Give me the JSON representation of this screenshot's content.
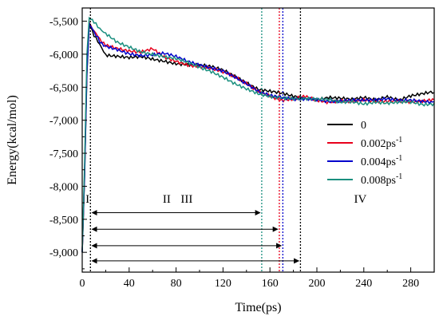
{
  "chart_data": {
    "type": "line",
    "xlabel": "Time(ps)",
    "ylabel": "Energy(kcal/mol)",
    "xlim": [
      0,
      300
    ],
    "ylim": [
      -9300,
      -5300
    ],
    "xticks": [
      0,
      40,
      80,
      120,
      160,
      200,
      240,
      280
    ],
    "xtick_labels": [
      "0",
      "40",
      "80",
      "120",
      "160",
      "200",
      "240",
      "280"
    ],
    "yticks": [
      -5500,
      -6000,
      -6500,
      -7000,
      -7500,
      -8000,
      -8500,
      -9000
    ],
    "ytick_labels": [
      "-5,500",
      "-6,000",
      "-6,500",
      "-7,000",
      "-7,500",
      "-8,000",
      "-8,500",
      "-9,000"
    ],
    "legend_position": "right",
    "series": [
      {
        "name": "0",
        "legend_label": "0",
        "legend_sup": "",
        "color": "#000000",
        "x": [
          0,
          2,
          4,
          6,
          10,
          15,
          20,
          30,
          40,
          50,
          60,
          70,
          80,
          90,
          100,
          110,
          120,
          130,
          140,
          150,
          160,
          170,
          180,
          190,
          200,
          210,
          220,
          230,
          240,
          250,
          260,
          270,
          280,
          290,
          300
        ],
        "y": [
          -9000,
          -7900,
          -6300,
          -5550,
          -5700,
          -5870,
          -6000,
          -6030,
          -6060,
          -6050,
          -6080,
          -6100,
          -6130,
          -6150,
          -6170,
          -6200,
          -6250,
          -6330,
          -6420,
          -6520,
          -6560,
          -6600,
          -6650,
          -6670,
          -6680,
          -6640,
          -6660,
          -6690,
          -6670,
          -6700,
          -6640,
          -6680,
          -6620,
          -6600,
          -6580
        ]
      },
      {
        "name": "0.002ps-1",
        "legend_label": "0.002ps",
        "legend_sup": "-1",
        "color": "#e8001c",
        "x": [
          0,
          2,
          4,
          6,
          10,
          15,
          20,
          30,
          40,
          50,
          60,
          70,
          80,
          90,
          100,
          110,
          120,
          130,
          140,
          150,
          160,
          170,
          180,
          190,
          200,
          210,
          220,
          230,
          240,
          250,
          260,
          270,
          280,
          290,
          300
        ],
        "y": [
          -9000,
          -7800,
          -6200,
          -5520,
          -5650,
          -5780,
          -5850,
          -5900,
          -5950,
          -5980,
          -5930,
          -6050,
          -6100,
          -6150,
          -6180,
          -6220,
          -6280,
          -6350,
          -6440,
          -6550,
          -6620,
          -6700,
          -6690,
          -6650,
          -6700,
          -6720,
          -6690,
          -6710,
          -6700,
          -6730,
          -6720,
          -6700,
          -6710,
          -6700,
          -6690
        ]
      },
      {
        "name": "0.004ps-1",
        "legend_label": "0.004ps",
        "legend_sup": "-1",
        "color": "#0000cc",
        "x": [
          0,
          2,
          4,
          6,
          10,
          15,
          20,
          30,
          40,
          50,
          60,
          70,
          80,
          90,
          100,
          110,
          120,
          130,
          140,
          150,
          160,
          170,
          180,
          190,
          200,
          210,
          220,
          230,
          240,
          250,
          260,
          270,
          280,
          290,
          300
        ],
        "y": [
          -9000,
          -7850,
          -6250,
          -5530,
          -5680,
          -5800,
          -5880,
          -5920,
          -5980,
          -6020,
          -6020,
          -6000,
          -6040,
          -6100,
          -6150,
          -6200,
          -6260,
          -6360,
          -6460,
          -6560,
          -6610,
          -6640,
          -6680,
          -6690,
          -6700,
          -6720,
          -6700,
          -6680,
          -6690,
          -6700,
          -6690,
          -6710,
          -6690,
          -6700,
          -6720
        ]
      },
      {
        "name": "0.008ps-1",
        "legend_label": "0.008ps",
        "legend_sup": "-1",
        "color": "#1a8f7f",
        "x": [
          0,
          2,
          4,
          6,
          10,
          15,
          20,
          30,
          40,
          50,
          60,
          70,
          80,
          90,
          100,
          110,
          120,
          130,
          140,
          150,
          160,
          170,
          180,
          190,
          200,
          210,
          220,
          230,
          240,
          250,
          260,
          270,
          280,
          290,
          300
        ],
        "y": [
          -9000,
          -7700,
          -6000,
          -5450,
          -5520,
          -5600,
          -5700,
          -5820,
          -5880,
          -5950,
          -6000,
          -6050,
          -6080,
          -6130,
          -6190,
          -6250,
          -6340,
          -6450,
          -6540,
          -6610,
          -6640,
          -6650,
          -6660,
          -6670,
          -6690,
          -6700,
          -6730,
          -6710,
          -6740,
          -6720,
          -6750,
          -6740,
          -6730,
          -6760,
          -6740
        ]
      }
    ],
    "vlines": [
      {
        "x": 7,
        "color": "#000000"
      },
      {
        "x": 153,
        "color": "#1a8f7f"
      },
      {
        "x": 168,
        "color": "#e8001c"
      },
      {
        "x": 171,
        "color": "#0000cc"
      },
      {
        "x": 186,
        "color": "#000000"
      }
    ],
    "arrows": [
      {
        "x1": 7,
        "x2": 153,
        "y": -8400
      },
      {
        "x1": 7,
        "x2": 168,
        "y": -8650
      },
      {
        "x1": 7,
        "x2": 171,
        "y": -8900
      },
      {
        "x1": 7,
        "x2": 186,
        "y": -9130
      }
    ],
    "region_labels": [
      {
        "text": "I",
        "x": 4.5,
        "y": -8250
      },
      {
        "text": "II",
        "x": 72,
        "y": -8250
      },
      {
        "text": "III",
        "x": 89,
        "y": -8250
      },
      {
        "text": "IV",
        "x": 237,
        "y": -8250
      }
    ]
  }
}
